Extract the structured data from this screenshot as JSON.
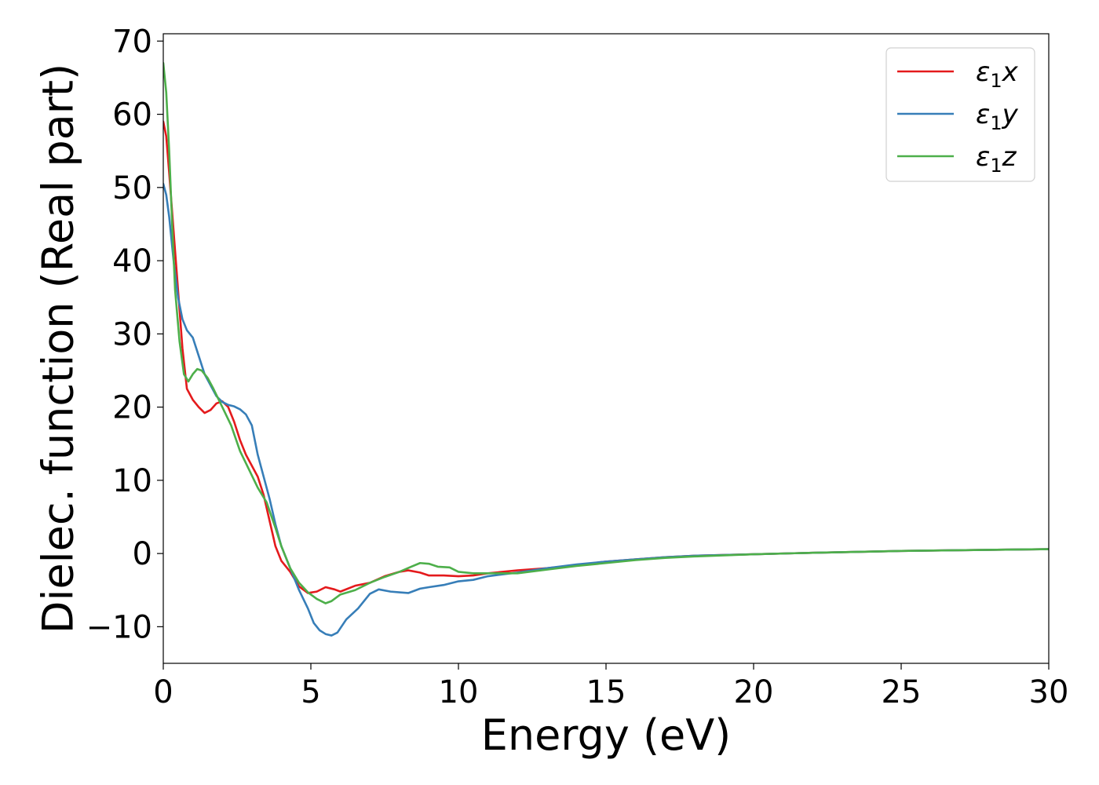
{
  "chart_data": {
    "type": "line",
    "title": "",
    "xlabel": "Energy (eV)",
    "ylabel": "Dielec. function (Real part)",
    "xlim": [
      0,
      30
    ],
    "ylim": [
      -15,
      71
    ],
    "xticks": [
      0,
      5,
      10,
      15,
      20,
      25,
      30
    ],
    "yticks": [
      -10,
      0,
      10,
      20,
      30,
      40,
      50,
      60,
      70
    ],
    "grid": false,
    "legend_position": "top-right",
    "series": [
      {
        "name": "ε1x",
        "color": "#e41a1c",
        "points": [
          [
            0,
            59
          ],
          [
            0.1,
            57
          ],
          [
            0.2,
            52
          ],
          [
            0.35,
            44
          ],
          [
            0.5,
            36
          ],
          [
            0.65,
            28
          ],
          [
            0.8,
            22.5
          ],
          [
            1.0,
            21
          ],
          [
            1.2,
            20
          ],
          [
            1.4,
            19.2
          ],
          [
            1.6,
            19.6
          ],
          [
            1.8,
            20.5
          ],
          [
            2.0,
            20.8
          ],
          [
            2.2,
            20
          ],
          [
            2.4,
            18
          ],
          [
            2.6,
            15.5
          ],
          [
            2.8,
            13.5
          ],
          [
            3.0,
            12
          ],
          [
            3.2,
            10.5
          ],
          [
            3.4,
            8
          ],
          [
            3.6,
            4.5
          ],
          [
            3.8,
            1
          ],
          [
            4.0,
            -1
          ],
          [
            4.3,
            -2.5
          ],
          [
            4.6,
            -4.5
          ],
          [
            4.9,
            -5.4
          ],
          [
            5.2,
            -5.2
          ],
          [
            5.5,
            -4.6
          ],
          [
            5.8,
            -4.9
          ],
          [
            6.0,
            -5.2
          ],
          [
            6.5,
            -4.4
          ],
          [
            7.0,
            -4
          ],
          [
            7.5,
            -3.1
          ],
          [
            8.0,
            -2.5
          ],
          [
            8.3,
            -2.3
          ],
          [
            8.7,
            -2.6
          ],
          [
            9.0,
            -3
          ],
          [
            9.5,
            -3
          ],
          [
            10,
            -3.1
          ],
          [
            10.5,
            -3
          ],
          [
            11,
            -2.7
          ],
          [
            12,
            -2.3
          ],
          [
            13,
            -2
          ],
          [
            14,
            -1.6
          ],
          [
            15,
            -1.1
          ],
          [
            16,
            -0.8
          ],
          [
            17,
            -0.5
          ],
          [
            18,
            -0.3
          ],
          [
            20,
            -0.1
          ],
          [
            22,
            0.1
          ],
          [
            25,
            0.35
          ],
          [
            28,
            0.5
          ],
          [
            30,
            0.6
          ]
        ]
      },
      {
        "name": "ε1y",
        "color": "#377eb8",
        "points": [
          [
            0,
            50.5
          ],
          [
            0.1,
            49
          ],
          [
            0.2,
            46
          ],
          [
            0.35,
            40
          ],
          [
            0.5,
            35
          ],
          [
            0.65,
            32
          ],
          [
            0.8,
            30.5
          ],
          [
            1.0,
            29.5
          ],
          [
            1.2,
            27
          ],
          [
            1.4,
            24.5
          ],
          [
            1.6,
            23
          ],
          [
            1.8,
            21.5
          ],
          [
            2.0,
            20.7
          ],
          [
            2.2,
            20.3
          ],
          [
            2.4,
            20.1
          ],
          [
            2.6,
            19.7
          ],
          [
            2.8,
            19
          ],
          [
            3.0,
            17.5
          ],
          [
            3.2,
            13.5
          ],
          [
            3.4,
            10.5
          ],
          [
            3.6,
            7.5
          ],
          [
            3.8,
            4
          ],
          [
            4.0,
            1
          ],
          [
            4.3,
            -2
          ],
          [
            4.6,
            -5
          ],
          [
            4.9,
            -7.5
          ],
          [
            5.1,
            -9.5
          ],
          [
            5.3,
            -10.5
          ],
          [
            5.5,
            -11
          ],
          [
            5.7,
            -11.2
          ],
          [
            5.9,
            -10.8
          ],
          [
            6.2,
            -9
          ],
          [
            6.6,
            -7.5
          ],
          [
            7.0,
            -5.5
          ],
          [
            7.3,
            -4.9
          ],
          [
            7.7,
            -5.2
          ],
          [
            8.0,
            -5.3
          ],
          [
            8.3,
            -5.4
          ],
          [
            8.7,
            -4.8
          ],
          [
            9.0,
            -4.6
          ],
          [
            9.5,
            -4.3
          ],
          [
            10,
            -3.8
          ],
          [
            10.5,
            -3.6
          ],
          [
            11,
            -3.1
          ],
          [
            12,
            -2.6
          ],
          [
            13,
            -2
          ],
          [
            14,
            -1.5
          ],
          [
            15,
            -1.1
          ],
          [
            16,
            -0.8
          ],
          [
            17,
            -0.5
          ],
          [
            18,
            -0.3
          ],
          [
            20,
            -0.1
          ],
          [
            22,
            0.1
          ],
          [
            25,
            0.35
          ],
          [
            28,
            0.5
          ],
          [
            30,
            0.6
          ]
        ]
      },
      {
        "name": "ε1z",
        "color": "#4daf4a",
        "points": [
          [
            0,
            67
          ],
          [
            0.1,
            63
          ],
          [
            0.2,
            55
          ],
          [
            0.3,
            45
          ],
          [
            0.4,
            36
          ],
          [
            0.55,
            29
          ],
          [
            0.7,
            24.5
          ],
          [
            0.85,
            23.5
          ],
          [
            1.0,
            24.5
          ],
          [
            1.15,
            25.2
          ],
          [
            1.3,
            25
          ],
          [
            1.5,
            24
          ],
          [
            1.7,
            22.5
          ],
          [
            2.0,
            20
          ],
          [
            2.3,
            17.5
          ],
          [
            2.6,
            14
          ],
          [
            2.9,
            11.5
          ],
          [
            3.2,
            9
          ],
          [
            3.5,
            7
          ],
          [
            3.8,
            3.5
          ],
          [
            4.0,
            1
          ],
          [
            4.3,
            -2
          ],
          [
            4.6,
            -4
          ],
          [
            4.9,
            -5.3
          ],
          [
            5.2,
            -6.2
          ],
          [
            5.5,
            -6.8
          ],
          [
            5.7,
            -6.5
          ],
          [
            6.0,
            -5.6
          ],
          [
            6.5,
            -5
          ],
          [
            7.0,
            -4
          ],
          [
            7.5,
            -3.2
          ],
          [
            8.0,
            -2.5
          ],
          [
            8.4,
            -1.8
          ],
          [
            8.7,
            -1.3
          ],
          [
            9.0,
            -1.4
          ],
          [
            9.3,
            -1.8
          ],
          [
            9.7,
            -1.9
          ],
          [
            10,
            -2.5
          ],
          [
            10.5,
            -2.7
          ],
          [
            11,
            -2.7
          ],
          [
            12,
            -2.7
          ],
          [
            13,
            -2.2
          ],
          [
            14,
            -1.7
          ],
          [
            15,
            -1.3
          ],
          [
            16,
            -0.9
          ],
          [
            17,
            -0.6
          ],
          [
            18,
            -0.4
          ],
          [
            20,
            -0.1
          ],
          [
            22,
            0.1
          ],
          [
            25,
            0.35
          ],
          [
            28,
            0.5
          ],
          [
            30,
            0.6
          ]
        ]
      }
    ]
  }
}
